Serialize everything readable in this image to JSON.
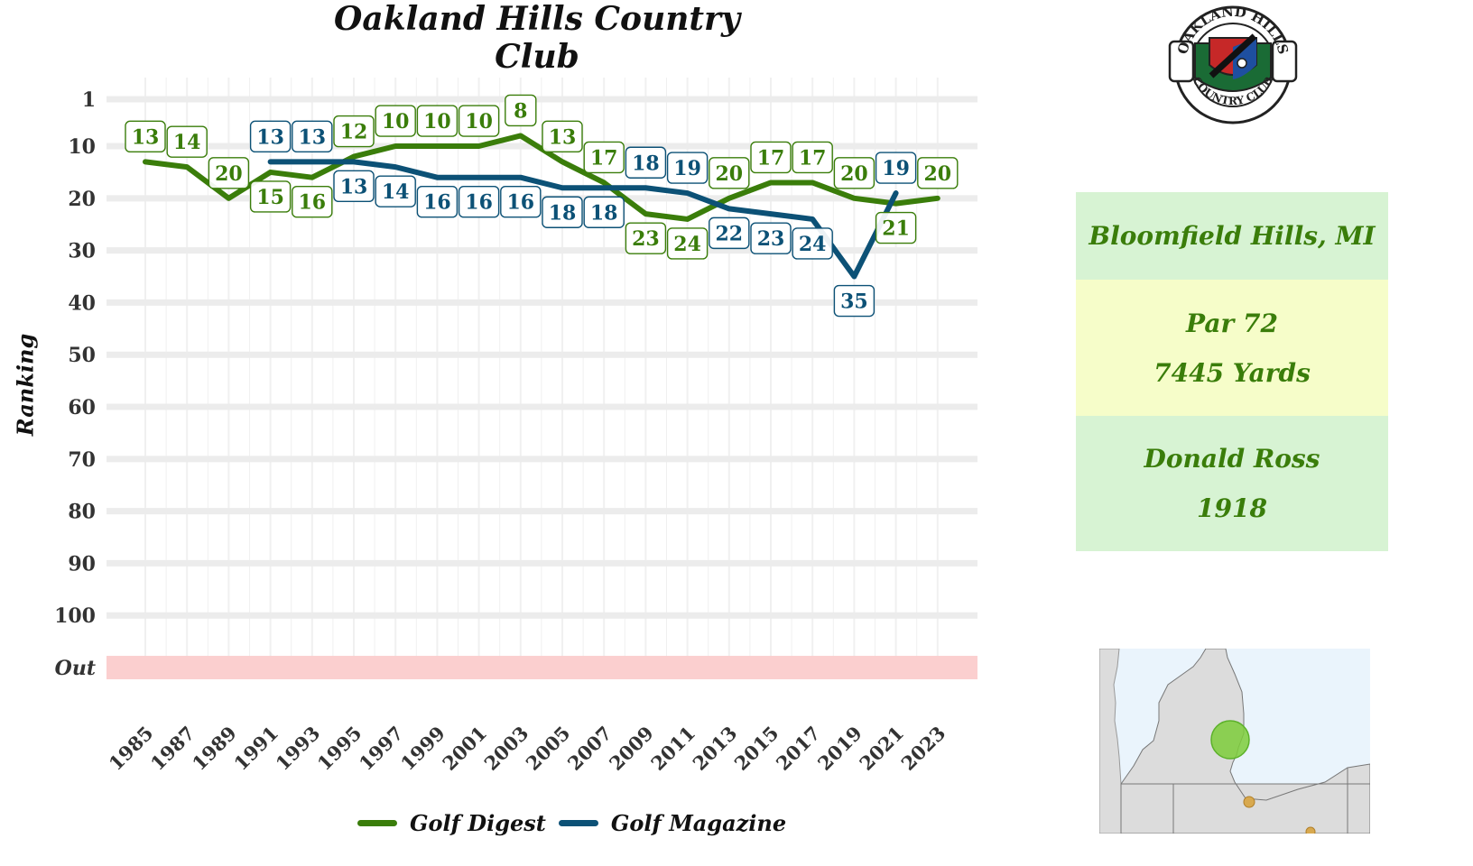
{
  "chart_data": {
    "type": "line",
    "title": "Oakland Hills Country Club",
    "ylabel": "Ranking",
    "xlabel": "",
    "x_ticks": [
      "1985",
      "1987",
      "1989",
      "1991",
      "1993",
      "1995",
      "1997",
      "1999",
      "2001",
      "2003",
      "2005",
      "2007",
      "2009",
      "2011",
      "2013",
      "2015",
      "2017",
      "2019",
      "2021",
      "2023"
    ],
    "y_ticks": [
      "1",
      "10",
      "20",
      "30",
      "40",
      "50",
      "60",
      "70",
      "80",
      "90",
      "100",
      "Out"
    ],
    "y_tick_values": [
      1,
      10,
      20,
      30,
      40,
      50,
      60,
      70,
      80,
      90,
      100,
      110
    ],
    "ylim": [
      1,
      110
    ],
    "y_reversed": true,
    "out_band_label": "Out",
    "legend_position": "bottom",
    "series": [
      {
        "name": "Golf Digest",
        "color": "#3a7d0a",
        "x": [
          1985,
          1987,
          1989,
          1991,
          1993,
          1995,
          1997,
          1999,
          2001,
          2003,
          2005,
          2007,
          2009,
          2011,
          2013,
          2015,
          2017,
          2019,
          2021,
          2023
        ],
        "values": [
          13,
          14,
          20,
          15,
          16,
          12,
          10,
          10,
          10,
          8,
          13,
          17,
          23,
          24,
          20,
          17,
          17,
          20,
          21,
          20
        ],
        "label_pos": [
          "above",
          "above",
          "above",
          "below",
          "below",
          "above",
          "above",
          "above",
          "above",
          "above",
          "above",
          "above",
          "below",
          "below",
          "above",
          "above",
          "above",
          "above",
          "below",
          "above"
        ]
      },
      {
        "name": "Golf Magazine",
        "color": "#0c5176",
        "x": [
          1991,
          1993,
          1995,
          1997,
          1999,
          2001,
          2003,
          2005,
          2007,
          2009,
          2011,
          2013,
          2015,
          2017,
          2019,
          2021
        ],
        "values": [
          13,
          13,
          13,
          14,
          16,
          16,
          16,
          18,
          18,
          18,
          19,
          22,
          23,
          24,
          35,
          19
        ],
        "label_pos": [
          "above",
          "above",
          "below",
          "below",
          "below",
          "below",
          "below",
          "below",
          "below",
          "above",
          "above",
          "below",
          "below",
          "below",
          "below",
          "above"
        ]
      }
    ]
  },
  "info": {
    "location": "Bloomfield Hills, MI",
    "par": "Par 72",
    "yards": "7445 Yards",
    "architect": "Donald Ross",
    "year": "1918"
  },
  "logo": {
    "top_text": "OAKLAND HILLS",
    "bottom_text": "COUNTRY CLUB"
  },
  "colors": {
    "digest": "#3a7d0a",
    "magazine": "#0c5176",
    "out_band": "#fbcfcf",
    "grid": "#ececec"
  }
}
